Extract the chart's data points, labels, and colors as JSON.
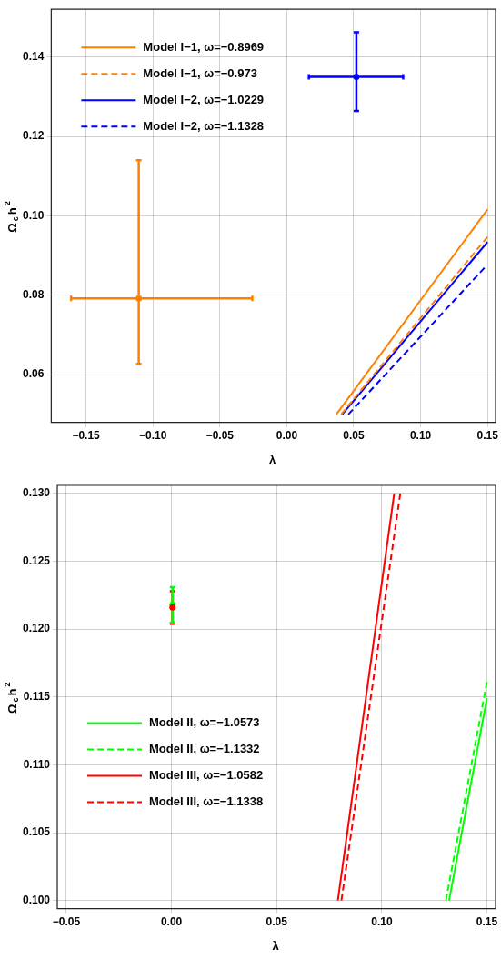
{
  "chart_data": [
    {
      "type": "line",
      "xlabel": "λ",
      "ylabel": "Ω$_{c}$h$^{2}$",
      "xlim": [
        -0.176,
        0.156
      ],
      "ylim": [
        0.048,
        0.152
      ],
      "xticks": [
        {
          "value": -0.15,
          "label": "−0.15"
        },
        {
          "value": -0.1,
          "label": "−0.10"
        },
        {
          "value": -0.05,
          "label": "−0.05"
        },
        {
          "value": 0,
          "label": "0.00"
        },
        {
          "value": 0.05,
          "label": "0.05"
        },
        {
          "value": 0.1,
          "label": "0.10"
        },
        {
          "value": 0.15,
          "label": "0.15"
        }
      ],
      "yticks": [
        {
          "value": 0.06,
          "label": "0.06"
        },
        {
          "value": 0.08,
          "label": "0.08"
        },
        {
          "value": 0.1,
          "label": "0.10"
        },
        {
          "value": 0.12,
          "label": "0.12"
        },
        {
          "value": 0.14,
          "label": "0.14"
        }
      ],
      "grid": true,
      "legend": "top left",
      "series": [
        {
          "name": "Model I−1, ω=−0.8969",
          "color": "#ff8000",
          "line_style": "solid",
          "x": [
            0.037,
            0.15
          ],
          "values": [
            0.05,
            0.1016
          ]
        },
        {
          "name": "Model I−1, ω=−0.973",
          "color": "#ff8000",
          "line_style": "dashed",
          "x": [
            0.0406,
            0.15
          ],
          "values": [
            0.05,
            0.0947
          ]
        },
        {
          "name": "Model I−2, ω=−1.0229",
          "color": "#0000ff",
          "line_style": "solid",
          "x": [
            0.0414,
            0.15
          ],
          "values": [
            0.05,
            0.0934
          ]
        },
        {
          "name": "Model I−2, ω=−1.1328",
          "color": "#0000ff",
          "line_style": "dashed",
          "x": [
            0.046,
            0.1477
          ],
          "values": [
            0.05,
            0.0869
          ]
        },
        {
          "type": "scatter",
          "color": "#ff8000",
          "marker": "circle",
          "x": [
            -0.1106
          ],
          "values": [
            0.0792
          ],
          "errors": [
            [
              0.0627,
              0.114
            ]
          ],
          "xerrors": [
            [
              -0.1612,
              -0.0257
            ]
          ]
        },
        {
          "type": "scatter",
          "color": "#0000ff",
          "marker": "circle",
          "x": [
            0.052
          ],
          "values": [
            0.135
          ],
          "errors": [
            [
              0.1264,
              0.1462
            ]
          ],
          "xerrors": [
            [
              0.0165,
              0.087
            ]
          ]
        }
      ]
    },
    {
      "type": "line",
      "xlabel": "λ",
      "ylabel": "Ω$_{c}$h$^{2}$",
      "xlim": [
        -0.0543,
        0.1541
      ],
      "ylim": [
        0.0994,
        0.1306
      ],
      "xticks": [
        {
          "value": -0.05,
          "label": "−0.05"
        },
        {
          "value": 0,
          "label": "0.00"
        },
        {
          "value": 0.05,
          "label": "0.05"
        },
        {
          "value": 0.1,
          "label": "0.10"
        },
        {
          "value": 0.15,
          "label": "0.15"
        }
      ],
      "yticks": [
        {
          "value": 0.1,
          "label": "0.100"
        },
        {
          "value": 0.105,
          "label": "0.105"
        },
        {
          "value": 0.11,
          "label": "0.110"
        },
        {
          "value": 0.115,
          "label": "0.115"
        },
        {
          "value": 0.12,
          "label": "0.120"
        },
        {
          "value": 0.125,
          "label": "0.125"
        },
        {
          "value": 0.13,
          "label": "0.130"
        }
      ],
      "grid": true,
      "legend": "bottom left",
      "series": [
        {
          "name": "Model II, ω=−1.0573",
          "color": "#00ff00",
          "line_style": "solid",
          "x": [
            0.132,
            0.15
          ],
          "values": [
            0.1,
            0.1149
          ]
        },
        {
          "name": "Model II, ω=−1.1332",
          "color": "#00ff00",
          "line_style": "dashed",
          "x": [
            0.1305,
            0.15
          ],
          "values": [
            0.1,
            0.1161
          ]
        },
        {
          "name": "Model III, ω=−1.0582",
          "color": "#ff0000",
          "line_style": "solid",
          "x": [
            0.0791,
            0.1059
          ],
          "values": [
            0.1,
            0.13
          ]
        },
        {
          "name": "Model III, ω=−1.1338",
          "color": "#ff0000",
          "line_style": "dashed",
          "x": [
            0.0808,
            0.1088
          ],
          "values": [
            0.1,
            0.13
          ]
        },
        {
          "type": "scatter",
          "color": "#ff0000",
          "marker": "circle",
          "x": [
            0.0005
          ],
          "values": [
            0.1216
          ],
          "errors": [
            [
              0.1204,
              0.1228
            ]
          ]
        },
        {
          "type": "scatter",
          "color": "#00ff00",
          "marker": "circle",
          "x": [
            0.0005
          ],
          "values": [
            0.1218
          ],
          "errors": [
            [
              0.1205,
              0.1231
            ]
          ]
        }
      ]
    }
  ]
}
